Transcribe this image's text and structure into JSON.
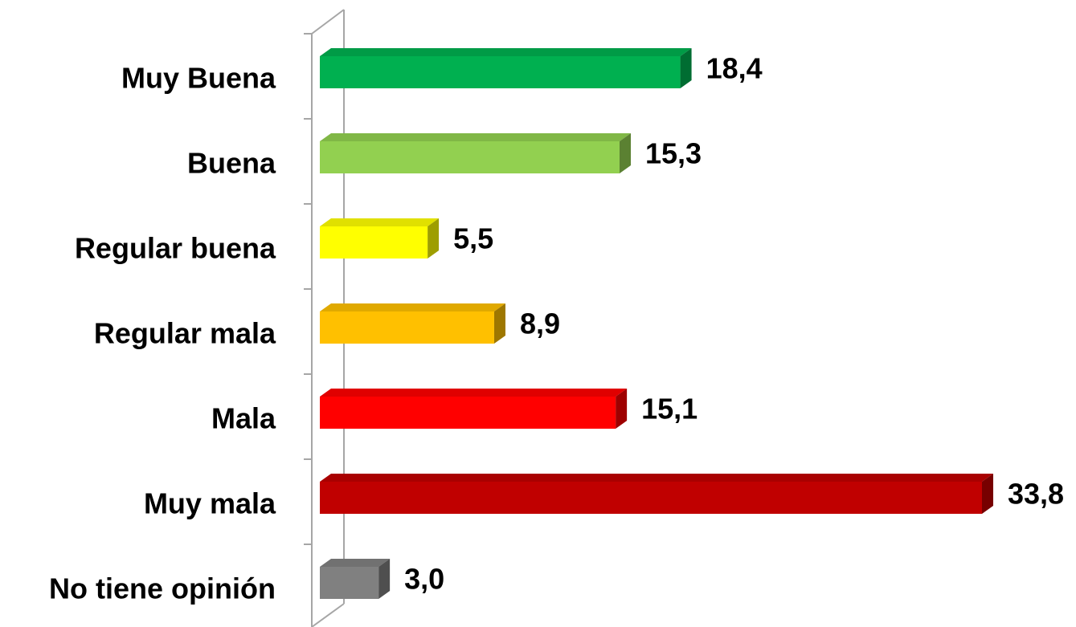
{
  "chart_data": {
    "type": "bar",
    "orientation": "horizontal",
    "categories": [
      "Muy Buena",
      "Buena",
      "Regular buena",
      "Regular mala",
      "Mala",
      "Muy mala",
      "No tiene opinión"
    ],
    "values": [
      18.4,
      15.3,
      5.5,
      8.9,
      15.1,
      33.8,
      3.0
    ],
    "value_labels": [
      "18,4",
      "15,3",
      "5,5",
      "8,9",
      "15,1",
      "33,8",
      "3,0"
    ],
    "colors": [
      "#00b050",
      "#92d050",
      "#ffff00",
      "#ffc000",
      "#ff0000",
      "#c00000",
      "#808080"
    ]
  }
}
